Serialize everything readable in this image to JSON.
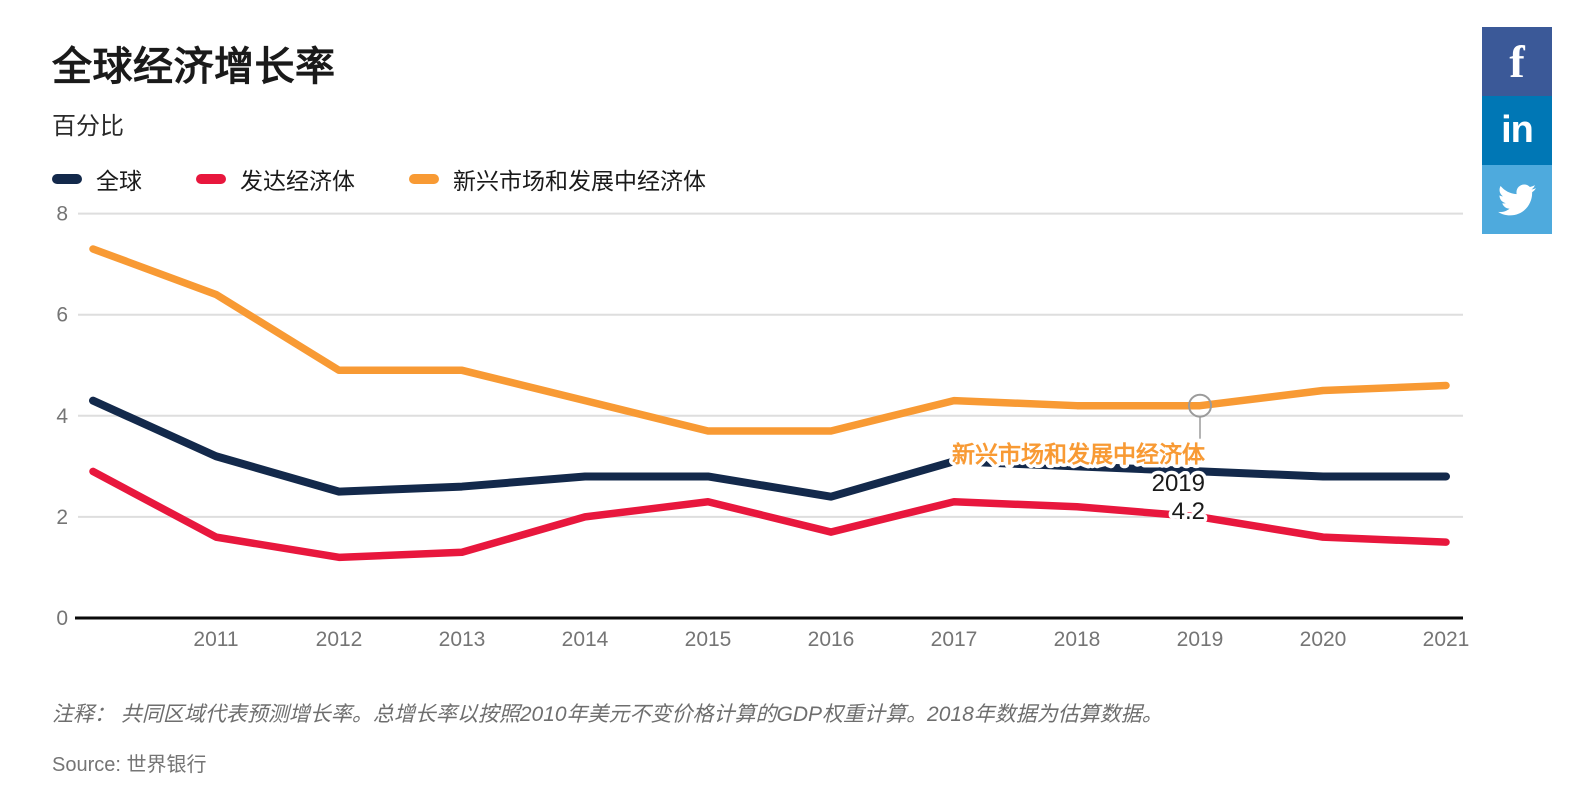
{
  "header": {
    "title": "全球经济增长率",
    "subtitle": "百分比"
  },
  "legend": {
    "items": [
      {
        "label": "全球",
        "color": "#13294B"
      },
      {
        "label": "发达经济体",
        "color": "#E8173D"
      },
      {
        "label": "新兴市场和发展中经济体",
        "color": "#F89A34"
      }
    ]
  },
  "social": {
    "items": [
      {
        "name": "Facebook",
        "glyph": "f",
        "color": "#3B5998"
      },
      {
        "name": "LinkedIn",
        "glyph": "in",
        "color": "#0077B5"
      },
      {
        "name": "Twitter",
        "glyph": "twitter-bird",
        "color": "#4EAADD"
      }
    ]
  },
  "chart_data": {
    "type": "line",
    "x": [
      2010,
      2011,
      2012,
      2013,
      2014,
      2015,
      2016,
      2017,
      2018,
      2019,
      2020,
      2021
    ],
    "series": [
      {
        "name": "全球",
        "color": "#13294B",
        "values": [
          4.3,
          3.2,
          2.5,
          2.6,
          2.8,
          2.8,
          2.4,
          3.1,
          3.0,
          2.9,
          2.8,
          2.8
        ]
      },
      {
        "name": "发达经济体",
        "color": "#E8173D",
        "values": [
          2.9,
          1.6,
          1.2,
          1.3,
          2.0,
          2.3,
          1.7,
          2.3,
          2.2,
          2.0,
          1.6,
          1.5
        ]
      },
      {
        "name": "新兴市场和发展中经济体",
        "color": "#F89A34",
        "values": [
          7.3,
          6.4,
          4.9,
          4.9,
          4.3,
          3.7,
          3.7,
          4.3,
          4.2,
          4.2,
          4.5,
          4.6
        ]
      }
    ],
    "title": "全球经济增长率",
    "ylabel": "百分比",
    "xlabel": "",
    "ylim": [
      0,
      8
    ],
    "yticks": [
      "8",
      "6",
      "4",
      "2",
      "0"
    ],
    "ytick_values": [
      8,
      6,
      4,
      2,
      0
    ],
    "xticks": [
      "2011",
      "2012",
      "2013",
      "2014",
      "2015",
      "2016",
      "2017",
      "2018",
      "2019",
      "2020",
      "2021"
    ],
    "xtick_values": [
      2011,
      2012,
      2013,
      2014,
      2015,
      2016,
      2017,
      2018,
      2019,
      2020,
      2021
    ],
    "grid": "horizontal",
    "legend_position": "top-left",
    "annotation": {
      "series": "新兴市场和发展中经济体",
      "year": 2019,
      "value": 4.2,
      "label_series": "新兴市场和发展中经济体",
      "label_year": "2019",
      "label_value": "4.2"
    }
  },
  "footer": {
    "note": "注释： 共同区域代表预测增长率。总增长率以按照2010年美元不变价格计算的GDP权重计算。2018年数据为估算数据。",
    "source": "Source: 世界银行"
  }
}
